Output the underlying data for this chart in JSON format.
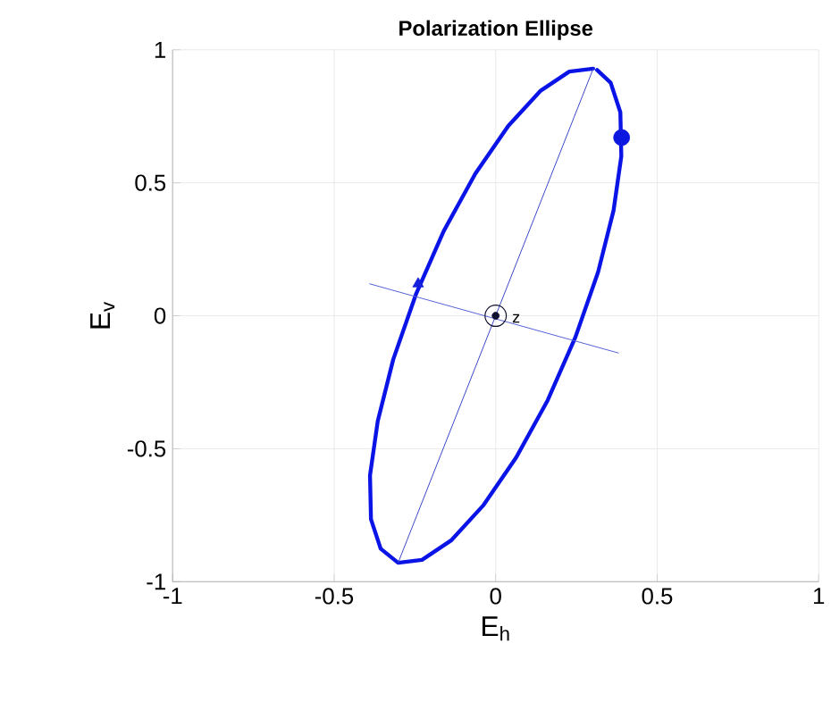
{
  "chart_data": {
    "type": "line",
    "title": "**Polarization Ellipse**",
    "xlabel": "E$_{h}$",
    "ylabel": "E$_{v}$",
    "xlim": [
      -1,
      1
    ],
    "ylim": [
      -1,
      1
    ],
    "xticks": [
      -1,
      -0.5,
      0,
      0.5,
      1
    ],
    "yticks": [
      -1,
      -0.5,
      0,
      0.5,
      1
    ],
    "grid": true,
    "annotations": [
      {
        "text": "z",
        "x": 0.05,
        "y": -0.01
      }
    ],
    "series": [
      {
        "color": "#0a14e6",
        "x": [
          0.302,
          0.228,
          0.138,
          0.039,
          -0.063,
          -0.161,
          -0.247,
          -0.317,
          -0.365,
          -0.389,
          -0.386,
          -0.356,
          -0.302,
          -0.228,
          -0.138,
          -0.039,
          0.063,
          0.161,
          0.247,
          0.317,
          0.365,
          0.389,
          0.386,
          0.356,
          0.314
        ],
        "values": [
          0.929,
          0.918,
          0.845,
          0.714,
          0.534,
          0.318,
          0.08,
          -0.164,
          -0.396,
          -0.6,
          -0.765,
          -0.876,
          -0.929,
          -0.918,
          -0.845,
          -0.714,
          -0.534,
          -0.318,
          -0.08,
          0.164,
          0.396,
          0.6,
          0.765,
          0.876,
          0.924
        ]
      },
      {
        "color": "#3a46c8",
        "x": [
          -0.302,
          0.302
        ],
        "values": [
          -0.929,
          0.929
        ]
      },
      {
        "color": "#5560d8",
        "x": [
          -0.39,
          0.38
        ],
        "values": [
          0.12,
          -0.14
        ]
      },
      {
        "type": "scatter",
        "marker": "circle",
        "color": "#0c18e0",
        "x": [
          0.39
        ],
        "values": [
          0.67
        ]
      },
      {
        "type": "scatter",
        "marker": "triangle",
        "color": "#1420dc",
        "x": [
          -0.24
        ],
        "values": [
          0.12
        ]
      },
      {
        "type": "scatter",
        "marker": "circle",
        "color": "#101030",
        "x": [
          0
        ],
        "values": [
          0
        ]
      }
    ]
  }
}
